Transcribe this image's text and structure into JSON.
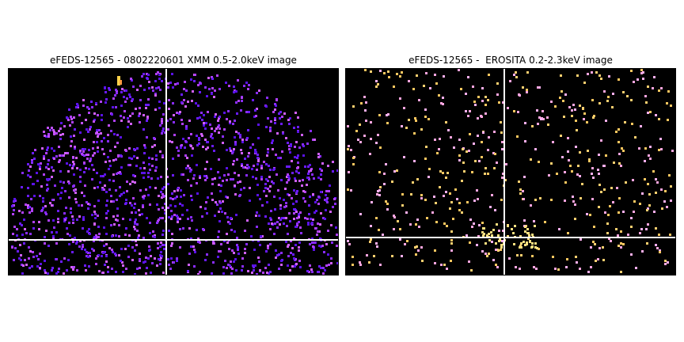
{
  "panels": [
    {
      "title": "eFEDS-12565 - 0802220601 XMM 0.5-2.0keV image",
      "colors": {
        "background": "#000000",
        "crosshair": "#ffffff",
        "points": [
          "#6a1bff",
          "#8a2cff",
          "#b040ff",
          "#5a12e8",
          "#d060ff"
        ],
        "hot": "#ffd24a"
      }
    },
    {
      "title": "eFEDS-12565 -  EROSITA 0.2-2.3keV image",
      "colors": {
        "background": "#000000",
        "crosshair": "#ffffff",
        "points": [
          "#ffb0f0",
          "#ffd070",
          "#ffa6e0",
          "#ffc860"
        ],
        "hot": "#ffe080"
      }
    }
  ]
}
